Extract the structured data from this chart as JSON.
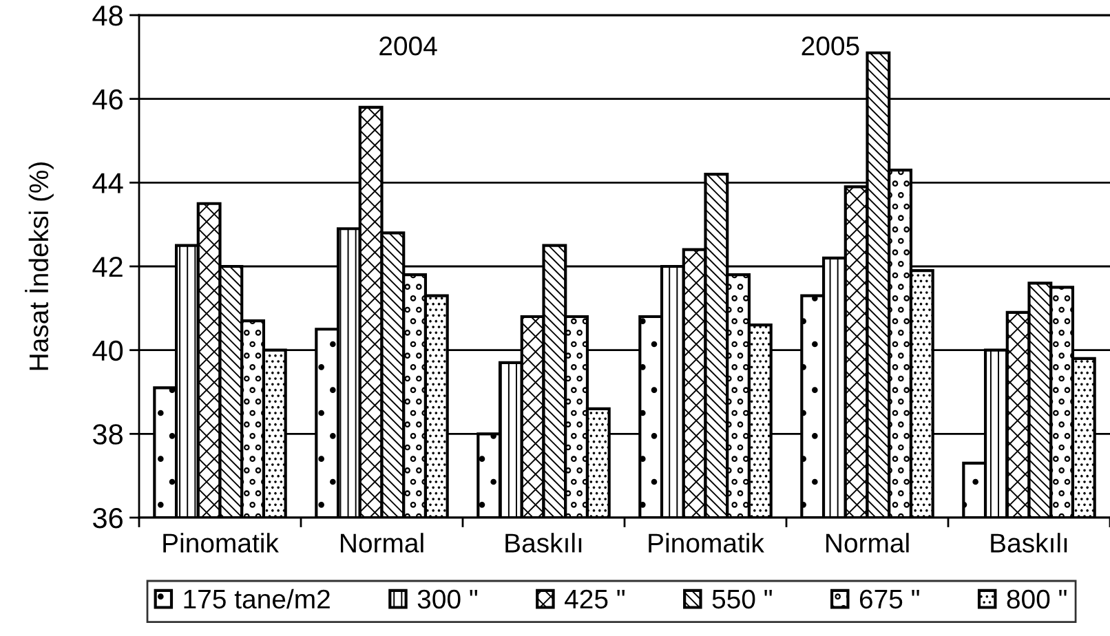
{
  "chart_data": {
    "type": "bar",
    "ylabel": "Hasat İndeksi (%)",
    "categories": [
      "Pinomatik",
      "Normal",
      "Baskılı",
      "Pinomatik",
      "Normal",
      "Baskılı"
    ],
    "series": [
      {
        "name": "175 tane/m2",
        "color": "#000000",
        "values": [
          39.1,
          40.5,
          38.0,
          40.8,
          41.3,
          37.3
        ]
      },
      {
        "name": "300 \"",
        "color": "#000000",
        "values": [
          42.5,
          42.9,
          39.7,
          42.0,
          42.2,
          40.0
        ]
      },
      {
        "name": "425 \"",
        "color": "#000000",
        "values": [
          43.5,
          45.8,
          40.8,
          42.4,
          43.9,
          40.9
        ]
      },
      {
        "name": "550 \"",
        "color": "#000000",
        "values": [
          42.0,
          42.8,
          42.5,
          44.2,
          47.1,
          41.6
        ]
      },
      {
        "name": "675 \"",
        "color": "#000000",
        "values": [
          40.7,
          41.8,
          40.8,
          41.8,
          44.3,
          41.5
        ]
      },
      {
        "name": "800 \"",
        "color": "#000000",
        "values": [
          40.0,
          41.3,
          38.6,
          40.6,
          41.9,
          39.8
        ]
      }
    ],
    "ylim": [
      36,
      48
    ],
    "yticks": [
      36,
      38,
      40,
      42,
      44,
      46,
      48
    ],
    "grid": "y",
    "legend": "bottom",
    "annotations": [
      "2004",
      "2005"
    ]
  }
}
